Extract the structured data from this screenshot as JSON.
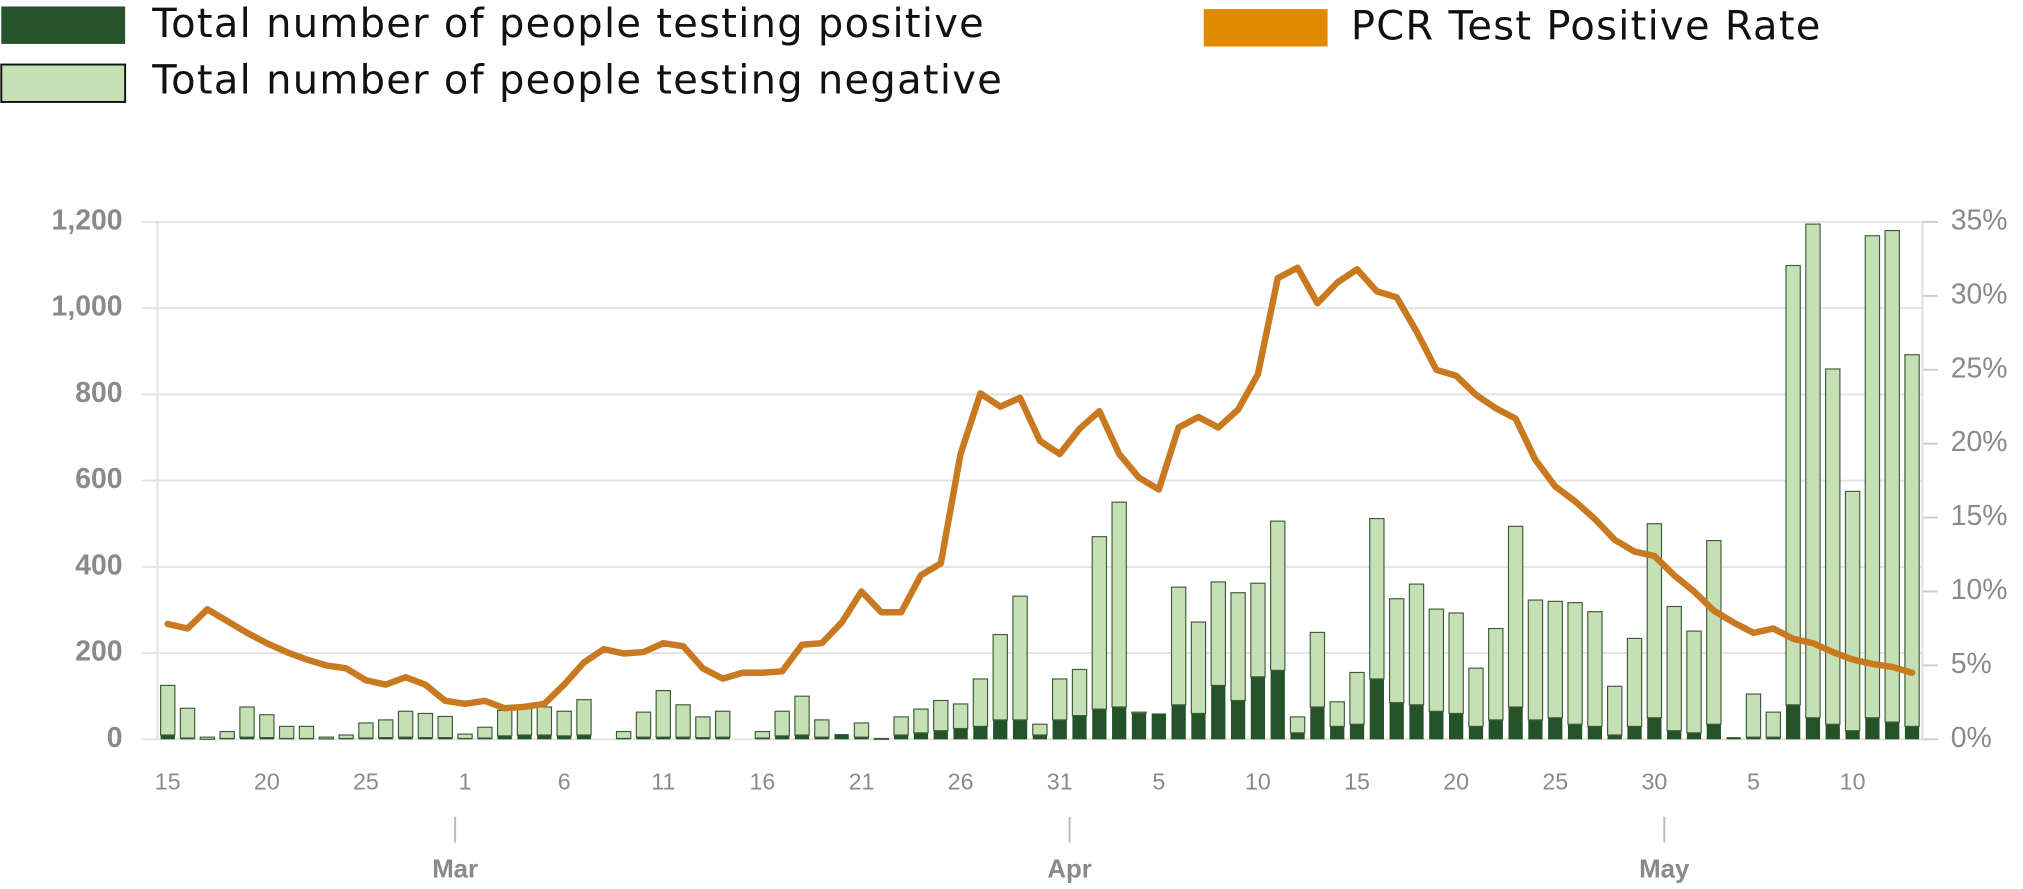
{
  "chart_data": {
    "type": "bar-line",
    "categories": [
      "Feb 15",
      "Feb 16",
      "Feb 17",
      "Feb 18",
      "Feb 19",
      "Feb 20",
      "Feb 21",
      "Feb 22",
      "Feb 23",
      "Feb 24",
      "Feb 25",
      "Feb 26",
      "Feb 27",
      "Feb 28",
      "Feb 29",
      "Mar 1",
      "Mar 2",
      "Mar 3",
      "Mar 4",
      "Mar 5",
      "Mar 6",
      "Mar 7",
      "Mar 8",
      "Mar 9",
      "Mar 10",
      "Mar 11",
      "Mar 12",
      "Mar 13",
      "Mar 14",
      "Mar 15",
      "Mar 16",
      "Mar 17",
      "Mar 18",
      "Mar 19",
      "Mar 20",
      "Mar 21",
      "Mar 22",
      "Mar 23",
      "Mar 24",
      "Mar 25",
      "Mar 26",
      "Mar 27",
      "Mar 28",
      "Mar 29",
      "Mar 30",
      "Mar 31",
      "Apr 1",
      "Apr 2",
      "Apr 3",
      "Apr 4",
      "Apr 5",
      "Apr 6",
      "Apr 7",
      "Apr 8",
      "Apr 9",
      "Apr 10",
      "Apr 11",
      "Apr 12",
      "Apr 13",
      "Apr 14",
      "Apr 15",
      "Apr 16",
      "Apr 17",
      "Apr 18",
      "Apr 19",
      "Apr 20",
      "Apr 21",
      "Apr 22",
      "Apr 23",
      "Apr 24",
      "Apr 25",
      "Apr 26",
      "Apr 27",
      "Apr 28",
      "Apr 29",
      "Apr 30",
      "May 1",
      "May 2",
      "May 3",
      "May 4",
      "May 5",
      "May 6",
      "May 7",
      "May 8",
      "May 9",
      "May 10",
      "May 11",
      "May 12",
      "May 13"
    ],
    "series": [
      {
        "name": "Total number of people testing positive",
        "color": "#24532a",
        "stack": true,
        "values": [
          10,
          3,
          0,
          2,
          5,
          4,
          2,
          2,
          1,
          2,
          3,
          4,
          5,
          4,
          4,
          2,
          3,
          8,
          10,
          10,
          8,
          10,
          0,
          2,
          5,
          5,
          5,
          4,
          5,
          0,
          3,
          8,
          10,
          5,
          12,
          5,
          0,
          10,
          15,
          20,
          25,
          30,
          45,
          45,
          10,
          45,
          55,
          70,
          75,
          60,
          60,
          80,
          60,
          125,
          90,
          145,
          160,
          15,
          75,
          30,
          35,
          140,
          85,
          80,
          65,
          60,
          30,
          45,
          75,
          45,
          50,
          35,
          30,
          10,
          30,
          50,
          20,
          15,
          35,
          5,
          5,
          5,
          80,
          50,
          35,
          20,
          50,
          40,
          30
        ]
      },
      {
        "name": "Total number of people testing negative",
        "color": "#c5e0b4",
        "stack": true,
        "values": [
          115,
          69,
          5,
          16,
          70,
          53,
          28,
          28,
          4,
          8,
          35,
          41,
          60,
          56,
          49,
          10,
          25,
          59,
          65,
          65,
          57,
          82,
          0,
          16,
          58,
          108,
          75,
          48,
          60,
          0,
          15,
          57,
          90,
          40,
          0,
          33,
          2,
          42,
          55,
          70,
          57,
          110,
          198,
          287,
          25,
          95,
          107,
          400,
          475,
          3,
          0,
          273,
          212,
          240,
          250,
          217,
          346,
          37,
          173,
          57,
          120,
          372,
          241,
          280,
          237,
          233,
          135,
          212,
          419,
          278,
          270,
          282,
          266,
          113,
          204,
          450,
          288,
          236,
          426,
          0,
          100,
          58,
          1019,
          1145,
          824,
          555,
          1118,
          1140,
          862
        ]
      },
      {
        "name": "PCR Test Positive Rate",
        "color": "#e38b00",
        "line_color": "#c9791f",
        "axis": "y2",
        "values": [
          7.8,
          7.5,
          8.8,
          8.0,
          7.2,
          6.5,
          5.9,
          5.4,
          5.0,
          4.8,
          4.0,
          3.7,
          4.2,
          3.7,
          2.6,
          2.4,
          2.6,
          2.1,
          2.2,
          2.4,
          3.7,
          5.2,
          6.1,
          5.8,
          5.9,
          6.5,
          6.3,
          4.8,
          4.1,
          4.5,
          4.5,
          4.6,
          6.4,
          6.5,
          7.9,
          10.0,
          8.6,
          8.6,
          11.1,
          11.9,
          19.3,
          23.4,
          22.5,
          23.1,
          20.2,
          19.3,
          21.0,
          22.2,
          19.3,
          17.7,
          16.9,
          21.1,
          21.8,
          21.1,
          22.3,
          24.7,
          31.2,
          31.9,
          29.5,
          30.9,
          31.8,
          30.3,
          29.9,
          27.6,
          25.0,
          24.6,
          23.3,
          22.4,
          21.7,
          18.9,
          17.1,
          16.1,
          14.9,
          13.5,
          12.7,
          12.4,
          11.1,
          10.0,
          8.7,
          7.9,
          7.2,
          7.5,
          6.8,
          6.5,
          5.9,
          5.4,
          5.1,
          4.9,
          4.5
        ]
      }
    ],
    "ylim": [
      0,
      1200
    ],
    "yticks": [
      0,
      200,
      400,
      600,
      800,
      {
        "value": 1000,
        "label": "1,000"
      },
      {
        "value": 1200,
        "label": "1,200"
      }
    ],
    "y2lim": [
      0,
      35
    ],
    "y2ticks": [
      {
        "value": 0,
        "label": "0%"
      },
      {
        "value": 5,
        "label": "5%"
      },
      {
        "value": 10,
        "label": "10%"
      },
      {
        "value": 15,
        "label": "15%"
      },
      {
        "value": 20,
        "label": "20%"
      },
      {
        "value": 25,
        "label": "25%"
      },
      {
        "value": 30,
        "label": "30%"
      },
      {
        "value": 35,
        "label": "35%"
      }
    ],
    "xticks": [
      {
        "value": "Feb 15",
        "label": "15"
      },
      {
        "value": "Feb 20",
        "label": "20"
      },
      {
        "value": "Feb 25",
        "label": "25"
      },
      {
        "value": "Mar 1",
        "label": "1"
      },
      {
        "value": "Mar 6",
        "label": "6"
      },
      {
        "value": "Mar 11",
        "label": "11"
      },
      {
        "value": "Mar 16",
        "label": "16"
      },
      {
        "value": "Mar 21",
        "label": "21"
      },
      {
        "value": "Mar 26",
        "label": "26"
      },
      {
        "value": "Mar 31",
        "label": "31"
      },
      {
        "value": "Apr 5",
        "label": "5"
      },
      {
        "value": "Apr 10",
        "label": "10"
      },
      {
        "value": "Apr 15",
        "label": "15"
      },
      {
        "value": "Apr 20",
        "label": "20"
      },
      {
        "value": "Apr 25",
        "label": "25"
      },
      {
        "value": "Apr 30",
        "label": "30"
      },
      {
        "value": "May 5",
        "label": "5"
      },
      {
        "value": "May 10",
        "label": "10"
      }
    ],
    "month_ticks": [
      {
        "value": "Mar 1",
        "label": "Mar"
      },
      {
        "value": "Apr 1",
        "label": "Apr"
      },
      {
        "value": "May 1",
        "label": "May"
      }
    ],
    "grid": true
  }
}
